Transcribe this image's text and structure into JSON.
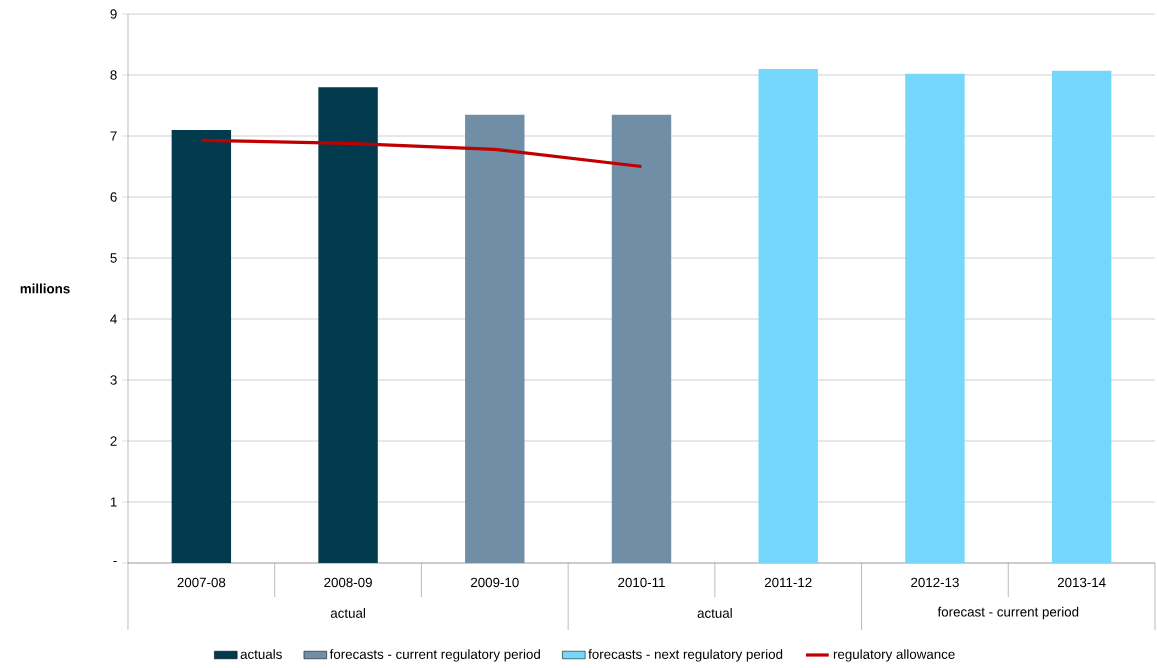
{
  "chart_data": {
    "type": "bar",
    "ylabel": "millions",
    "categories": [
      "2007-08",
      "2008-09",
      "2009-10",
      "2010-11",
      "2011-12",
      "2012-13",
      "2013-14"
    ],
    "series": [
      {
        "name": "actuals",
        "color": "#023a4e",
        "values": [
          7.1,
          7.8,
          null,
          null,
          null,
          null,
          null
        ]
      },
      {
        "name": "forecasts - current regulatory period",
        "color": "#708ea6",
        "values": [
          null,
          null,
          7.35,
          7.35,
          null,
          null,
          null
        ]
      },
      {
        "name": "forecasts - next regulatory period",
        "color": "#75d7fb",
        "values": [
          null,
          null,
          null,
          null,
          8.1,
          8.02,
          8.07
        ]
      },
      {
        "name": "regulatory allowance",
        "type": "line",
        "color": "#c00000",
        "values": [
          6.93,
          6.88,
          6.78,
          6.5,
          null,
          null,
          null
        ]
      }
    ],
    "ylim": [
      0,
      9
    ],
    "yticks": [
      {
        "value": 0,
        "label": "-"
      },
      1,
      2,
      3,
      4,
      5,
      6,
      7,
      8,
      9
    ],
    "grid": "y",
    "legend": "bottom",
    "annotations": [
      "actual",
      "actual",
      "forecast - current period"
    ]
  }
}
